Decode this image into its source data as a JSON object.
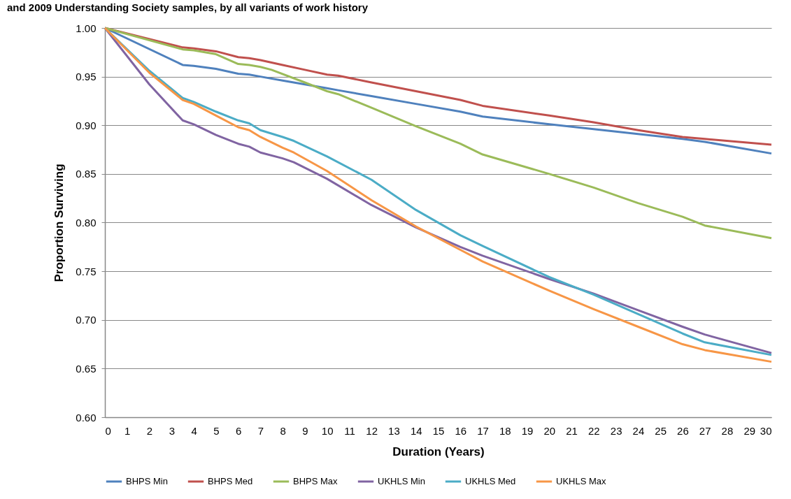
{
  "chart_data": {
    "type": "line",
    "title": "and 2009 Understanding Society samples, by all variants of work history",
    "xlabel": "Duration (Years)",
    "ylabel": "Proportion Surviving",
    "xlim": [
      0,
      30
    ],
    "xticks": [
      0,
      1,
      2,
      3,
      4,
      5,
      6,
      7,
      8,
      9,
      10,
      11,
      12,
      13,
      14,
      15,
      16,
      17,
      18,
      19,
      20,
      21,
      22,
      23,
      24,
      25,
      26,
      27,
      28,
      29,
      30
    ],
    "ylim": [
      0.6,
      1.0
    ],
    "yticks": [
      {
        "value": 0.6,
        "label": "0.60"
      },
      {
        "value": 0.65,
        "label": "0.65"
      },
      {
        "value": 0.7,
        "label": "0.70"
      },
      {
        "value": 0.75,
        "label": "0.75"
      },
      {
        "value": 0.8,
        "label": "0.80"
      },
      {
        "value": 0.85,
        "label": "0.85"
      },
      {
        "value": 0.9,
        "label": "0.90"
      },
      {
        "value": 0.95,
        "label": "0.95"
      },
      {
        "value": 1.0,
        "label": "1.00"
      }
    ],
    "grid": "y",
    "legend": "bottom",
    "marker": "none",
    "line_style": "solid",
    "series": [
      {
        "name": "BHPS Min",
        "color": "#4f81bd",
        "x": [
          0,
          3.5,
          4,
          5,
          6,
          6.5,
          7,
          8,
          9,
          10,
          10.5,
          12,
          14,
          16,
          17,
          20,
          22,
          24,
          26,
          27,
          30
        ],
        "values": [
          1.0,
          0.962,
          0.961,
          0.958,
          0.953,
          0.952,
          0.95,
          0.946,
          0.942,
          0.938,
          0.936,
          0.93,
          0.922,
          0.914,
          0.909,
          0.901,
          0.896,
          0.891,
          0.886,
          0.883,
          0.871
        ]
      },
      {
        "name": "BHPS Med",
        "color": "#c0504d",
        "x": [
          0,
          3.5,
          4,
          5,
          6,
          6.5,
          7,
          8,
          9,
          10,
          10.5,
          12,
          14,
          16,
          17,
          20,
          22,
          24,
          26,
          27,
          30
        ],
        "values": [
          1.0,
          0.98,
          0.979,
          0.976,
          0.97,
          0.969,
          0.967,
          0.962,
          0.957,
          0.952,
          0.951,
          0.944,
          0.935,
          0.926,
          0.92,
          0.91,
          0.903,
          0.895,
          0.888,
          0.886,
          0.88
        ]
      },
      {
        "name": "BHPS Max",
        "color": "#9bbb59",
        "x": [
          0,
          3.5,
          4,
          5,
          6,
          6.5,
          7,
          7.5,
          9,
          10,
          10.5,
          12,
          14,
          16,
          17,
          20,
          22,
          24,
          26,
          27,
          30
        ],
        "values": [
          1.0,
          0.978,
          0.977,
          0.973,
          0.963,
          0.962,
          0.96,
          0.957,
          0.944,
          0.935,
          0.932,
          0.918,
          0.899,
          0.881,
          0.87,
          0.85,
          0.836,
          0.82,
          0.806,
          0.797,
          0.784
        ]
      },
      {
        "name": "UKHLS Min",
        "color": "#8064a2",
        "x": [
          0,
          2,
          3.5,
          4,
          5,
          6,
          6.5,
          7,
          8,
          8.5,
          10,
          12,
          14,
          16,
          17,
          20,
          22,
          24,
          26,
          27,
          30
        ],
        "values": [
          1.0,
          0.942,
          0.905,
          0.901,
          0.89,
          0.881,
          0.878,
          0.872,
          0.866,
          0.862,
          0.845,
          0.818,
          0.795,
          0.775,
          0.766,
          0.742,
          0.727,
          0.71,
          0.693,
          0.685,
          0.666
        ]
      },
      {
        "name": "UKHLS Med",
        "color": "#4bacc6",
        "x": [
          0,
          2,
          3.5,
          4,
          5,
          6,
          6.5,
          7,
          8,
          8.5,
          10,
          11.5,
          12,
          14,
          16,
          17,
          20,
          22,
          24,
          26,
          27,
          30
        ],
        "values": [
          1.0,
          0.956,
          0.928,
          0.924,
          0.914,
          0.905,
          0.902,
          0.895,
          0.888,
          0.884,
          0.868,
          0.85,
          0.844,
          0.813,
          0.787,
          0.776,
          0.744,
          0.726,
          0.706,
          0.686,
          0.677,
          0.664
        ]
      },
      {
        "name": "UKHLS Max",
        "color": "#f79646",
        "x": [
          0,
          2,
          3.5,
          4,
          5,
          6,
          6.5,
          7,
          8,
          8.5,
          10,
          12,
          14,
          16,
          17,
          20,
          22,
          24,
          26,
          27,
          30
        ],
        "values": [
          1.0,
          0.954,
          0.926,
          0.922,
          0.91,
          0.898,
          0.895,
          0.888,
          0.877,
          0.872,
          0.853,
          0.823,
          0.796,
          0.772,
          0.76,
          0.73,
          0.711,
          0.693,
          0.675,
          0.669,
          0.657
        ]
      }
    ]
  }
}
